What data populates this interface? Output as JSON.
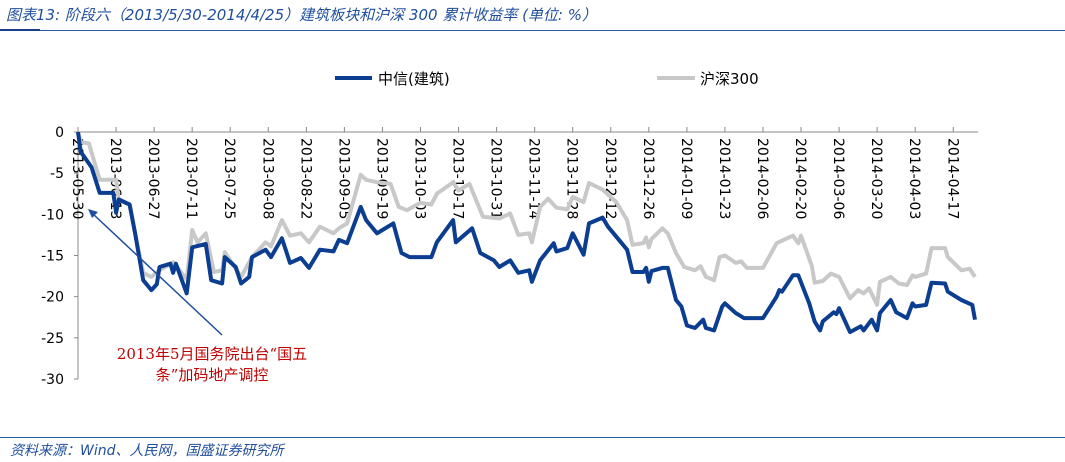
{
  "title": "图表13:  阶段六（2013/5/30-2014/4/25）建筑板块和沪深 300 累计收益率 (单位:    %）",
  "source": "资料来源：Wind、人民网，国盛证券研究所",
  "annotation": {
    "line1": "2013年5月国务院出台“国五",
    "line2": "条”加码地产调控",
    "color": "#c00000"
  },
  "chart_data": {
    "type": "line",
    "title": "",
    "xlabel": "",
    "ylabel": "",
    "ylim": [
      -30,
      0
    ],
    "yticks": [
      0,
      -5,
      -10,
      -15,
      -20,
      -25,
      -30
    ],
    "xlim": [
      "2013-05-30",
      "2014-04-25"
    ],
    "xticks": [
      "2013-05-30",
      "2013-06-13",
      "2013-06-27",
      "2013-07-11",
      "2013-07-25",
      "2013-08-08",
      "2013-08-22",
      "2013-09-05",
      "2013-09-19",
      "2013-10-03",
      "2013-10-17",
      "2013-10-31",
      "2013-11-14",
      "2013-11-28",
      "2013-12-12",
      "2013-12-26",
      "2014-01-09",
      "2014-01-23",
      "2014-02-06",
      "2014-02-20",
      "2014-03-06",
      "2014-03-20",
      "2014-04-03",
      "2014-04-17"
    ],
    "grid": false,
    "legend": "top",
    "series": [
      {
        "name": "中信(建筑)",
        "color": "#0b3d91",
        "points": [
          [
            "2013-05-30",
            0
          ],
          [
            "2013-05-31",
            -2.4
          ],
          [
            "2013-06-04",
            -4.3
          ],
          [
            "2013-06-07",
            -7.4
          ],
          [
            "2013-06-12",
            -7.4
          ],
          [
            "2013-06-13",
            -9.8
          ],
          [
            "2013-06-14",
            -8.2
          ],
          [
            "2013-06-18",
            -8.8
          ],
          [
            "2013-06-20",
            -12.3
          ],
          [
            "2013-06-23",
            -18
          ],
          [
            "2013-06-26",
            -19.2
          ],
          [
            "2013-06-28",
            -18.5
          ],
          [
            "2013-06-29",
            -16.4
          ],
          [
            "2013-07-03",
            -16
          ],
          [
            "2013-07-04",
            -17.1
          ],
          [
            "2013-07-05",
            -16
          ],
          [
            "2013-07-09",
            -19.6
          ],
          [
            "2013-07-11",
            -14
          ],
          [
            "2013-07-16",
            -13.6
          ],
          [
            "2013-07-18",
            -18
          ],
          [
            "2013-07-22",
            -18.4
          ],
          [
            "2013-07-23",
            -15.2
          ],
          [
            "2013-07-27",
            -16.4
          ],
          [
            "2013-07-29",
            -18.4
          ],
          [
            "2013-08-01",
            -17.6
          ],
          [
            "2013-08-02",
            -15.2
          ],
          [
            "2013-08-07",
            -14.3
          ],
          [
            "2013-08-09",
            -15.2
          ],
          [
            "2013-08-13",
            -12.9
          ],
          [
            "2013-08-16",
            -15.9
          ],
          [
            "2013-08-20",
            -15.3
          ],
          [
            "2013-08-23",
            -16.5
          ],
          [
            "2013-08-27",
            -14.3
          ],
          [
            "2013-09-01",
            -14.5
          ],
          [
            "2013-09-03",
            -13.1
          ],
          [
            "2013-09-06",
            -13.5
          ],
          [
            "2013-09-11",
            -9.1
          ],
          [
            "2013-09-13",
            -10.7
          ],
          [
            "2013-09-17",
            -12.3
          ],
          [
            "2013-09-23",
            -11.1
          ],
          [
            "2013-09-26",
            -14.7
          ],
          [
            "2013-09-29",
            -15.2
          ],
          [
            "2013-10-07",
            -15.2
          ],
          [
            "2013-10-09",
            -13.4
          ],
          [
            "2013-10-15",
            -10.7
          ],
          [
            "2013-10-16",
            -13.4
          ],
          [
            "2013-10-22",
            -11.7
          ],
          [
            "2013-10-25",
            -14.7
          ],
          [
            "2013-10-30",
            -15.6
          ],
          [
            "2013-11-01",
            -16.4
          ],
          [
            "2013-11-05",
            -15.6
          ],
          [
            "2013-11-08",
            -17.1
          ],
          [
            "2013-11-12",
            -16.8
          ],
          [
            "2013-11-13",
            -18.2
          ],
          [
            "2013-11-16",
            -15.6
          ],
          [
            "2013-11-21",
            -13.5
          ],
          [
            "2013-11-22",
            -14.5
          ],
          [
            "2013-11-26",
            -14.1
          ],
          [
            "2013-11-28",
            -12.3
          ],
          [
            "2013-12-02",
            -14.9
          ],
          [
            "2013-12-04",
            -11.1
          ],
          [
            "2013-12-09",
            -10.4
          ],
          [
            "2013-12-11",
            -11.5
          ],
          [
            "2013-12-18",
            -14.3
          ],
          [
            "2013-12-20",
            -17
          ],
          [
            "2013-12-24",
            -17
          ],
          [
            "2013-12-25",
            -16.5
          ],
          [
            "2013-12-26",
            -18.2
          ],
          [
            "2013-12-27",
            -16.9
          ],
          [
            "2013-12-31",
            -16.5
          ],
          [
            "2014-01-02",
            -16.5
          ],
          [
            "2014-01-05",
            -20.4
          ],
          [
            "2014-01-07",
            -21.2
          ],
          [
            "2014-01-09",
            -23.5
          ],
          [
            "2014-01-12",
            -23.8
          ],
          [
            "2014-01-15",
            -22.8
          ],
          [
            "2014-01-16",
            -23.8
          ],
          [
            "2014-01-19",
            -24.1
          ],
          [
            "2014-01-22",
            -21.2
          ],
          [
            "2014-01-23",
            -20.8
          ],
          [
            "2014-01-27",
            -22
          ],
          [
            "2014-01-30",
            -22.6
          ],
          [
            "2014-02-06",
            -22.6
          ],
          [
            "2014-02-11",
            -20
          ],
          [
            "2014-02-12",
            -19.2
          ],
          [
            "2014-02-13",
            -19.4
          ],
          [
            "2014-02-17",
            -17.4
          ],
          [
            "2014-02-19",
            -17.4
          ],
          [
            "2014-02-23",
            -20.8
          ],
          [
            "2014-02-25",
            -23
          ],
          [
            "2014-02-27",
            -24.1
          ],
          [
            "2014-02-28",
            -23
          ],
          [
            "2014-03-04",
            -21.9
          ],
          [
            "2014-03-05",
            -22.1
          ],
          [
            "2014-03-06",
            -21.4
          ],
          [
            "2014-03-10",
            -24.3
          ],
          [
            "2014-03-14",
            -23.6
          ],
          [
            "2014-03-15",
            -24.1
          ],
          [
            "2014-03-18",
            -22.8
          ],
          [
            "2014-03-20",
            -24.1
          ],
          [
            "2014-03-21",
            -22
          ],
          [
            "2014-03-25",
            -20.4
          ],
          [
            "2014-03-27",
            -21.9
          ],
          [
            "2014-03-31",
            -22.6
          ],
          [
            "2014-04-02",
            -20.8
          ],
          [
            "2014-04-03",
            -21.2
          ],
          [
            "2014-04-07",
            -21
          ],
          [
            "2014-04-09",
            -18.3
          ],
          [
            "2014-04-14",
            -18.4
          ],
          [
            "2014-04-15",
            -19.4
          ],
          [
            "2014-04-20",
            -20.4
          ],
          [
            "2014-04-24",
            -21
          ],
          [
            "2014-04-25",
            -22.8
          ]
        ]
      },
      {
        "name": "沪深300",
        "color": "#c8c8c8",
        "points": [
          [
            "2013-05-30",
            0
          ],
          [
            "2013-05-31",
            -1.2
          ],
          [
            "2013-06-03",
            -1.4
          ],
          [
            "2013-06-07",
            -5.8
          ],
          [
            "2013-06-13",
            -5.8
          ],
          [
            "2013-06-14",
            -8.3
          ],
          [
            "2013-06-18",
            -8.8
          ],
          [
            "2013-06-20",
            -12.3
          ],
          [
            "2013-06-23",
            -17.1
          ],
          [
            "2013-06-26",
            -17.6
          ],
          [
            "2013-06-29",
            -16.8
          ],
          [
            "2013-07-04",
            -15.8
          ],
          [
            "2013-07-09",
            -17.9
          ],
          [
            "2013-07-11",
            -11.9
          ],
          [
            "2013-07-13",
            -13.4
          ],
          [
            "2013-07-16",
            -12.3
          ],
          [
            "2013-07-19",
            -17
          ],
          [
            "2013-07-22",
            -16.8
          ],
          [
            "2013-07-23",
            -14.6
          ],
          [
            "2013-07-29",
            -17.6
          ],
          [
            "2013-08-02",
            -15.2
          ],
          [
            "2013-08-07",
            -13.4
          ],
          [
            "2013-08-09",
            -13.9
          ],
          [
            "2013-08-13",
            -10.7
          ],
          [
            "2013-08-16",
            -12.6
          ],
          [
            "2013-08-20",
            -12.3
          ],
          [
            "2013-08-23",
            -13.4
          ],
          [
            "2013-08-27",
            -11.5
          ],
          [
            "2013-09-01",
            -12.3
          ],
          [
            "2013-09-03",
            -11.7
          ],
          [
            "2013-09-06",
            -11.1
          ],
          [
            "2013-09-11",
            -5.2
          ],
          [
            "2013-09-13",
            -5.8
          ],
          [
            "2013-09-17",
            -6.1
          ],
          [
            "2013-09-22",
            -6.3
          ],
          [
            "2013-09-25",
            -9.1
          ],
          [
            "2013-09-28",
            -9.5
          ],
          [
            "2013-10-03",
            -8.6
          ],
          [
            "2013-10-07",
            -8.8
          ],
          [
            "2013-10-09",
            -7.5
          ],
          [
            "2013-10-15",
            -6.1
          ],
          [
            "2013-10-17",
            -7.1
          ],
          [
            "2013-10-21",
            -6.3
          ],
          [
            "2013-10-26",
            -10.3
          ],
          [
            "2013-11-01",
            -10.5
          ],
          [
            "2013-11-05",
            -9.9
          ],
          [
            "2013-11-08",
            -12.5
          ],
          [
            "2013-11-12",
            -12.3
          ],
          [
            "2013-11-13",
            -13.4
          ],
          [
            "2013-11-16",
            -9.1
          ],
          [
            "2013-11-19",
            -8.1
          ],
          [
            "2013-11-22",
            -9.2
          ],
          [
            "2013-11-26",
            -9.4
          ],
          [
            "2013-11-28",
            -7.9
          ],
          [
            "2013-12-02",
            -8.5
          ],
          [
            "2013-12-04",
            -6.2
          ],
          [
            "2013-12-09",
            -7
          ],
          [
            "2013-12-14",
            -8.5
          ],
          [
            "2013-12-18",
            -10.7
          ],
          [
            "2013-12-20",
            -13.7
          ],
          [
            "2013-12-24",
            -13.5
          ],
          [
            "2013-12-25",
            -12.8
          ],
          [
            "2013-12-26",
            -14
          ],
          [
            "2013-12-27",
            -13
          ],
          [
            "2013-12-31",
            -11.7
          ],
          [
            "2014-01-02",
            -12.3
          ],
          [
            "2014-01-05",
            -14.7
          ],
          [
            "2014-01-08",
            -16.4
          ],
          [
            "2014-01-12",
            -16.8
          ],
          [
            "2014-01-14",
            -16.3
          ],
          [
            "2014-01-16",
            -17.6
          ],
          [
            "2014-01-19",
            -18
          ],
          [
            "2014-01-21",
            -15.2
          ],
          [
            "2014-01-23",
            -15
          ],
          [
            "2014-01-27",
            -15.9
          ],
          [
            "2014-01-29",
            -15.7
          ],
          [
            "2014-01-31",
            -16.5
          ],
          [
            "2014-02-06",
            -16.5
          ],
          [
            "2014-02-11",
            -13.5
          ],
          [
            "2014-02-15",
            -12.9
          ],
          [
            "2014-02-17",
            -12.6
          ],
          [
            "2014-02-19",
            -13.5
          ],
          [
            "2014-02-20",
            -12.6
          ],
          [
            "2014-02-24",
            -16.3
          ],
          [
            "2014-02-25",
            -18.3
          ],
          [
            "2014-02-28",
            -18.1
          ],
          [
            "2014-03-03",
            -17.2
          ],
          [
            "2014-03-06",
            -17.6
          ],
          [
            "2014-03-10",
            -20.2
          ],
          [
            "2014-03-13",
            -19.2
          ],
          [
            "2014-03-15",
            -19.6
          ],
          [
            "2014-03-17",
            -19
          ],
          [
            "2014-03-20",
            -21
          ],
          [
            "2014-03-21",
            -18.2
          ],
          [
            "2014-03-25",
            -17.6
          ],
          [
            "2014-03-28",
            -18.4
          ],
          [
            "2014-03-31",
            -18.6
          ],
          [
            "2014-04-02",
            -17.4
          ],
          [
            "2014-04-03",
            -17.6
          ],
          [
            "2014-04-07",
            -17.2
          ],
          [
            "2014-04-09",
            -14.1
          ],
          [
            "2014-04-14",
            -14.1
          ],
          [
            "2014-04-15",
            -15.2
          ],
          [
            "2014-04-20",
            -16.8
          ],
          [
            "2014-04-23",
            -16.6
          ],
          [
            "2014-04-25",
            -17.6
          ]
        ]
      }
    ]
  }
}
